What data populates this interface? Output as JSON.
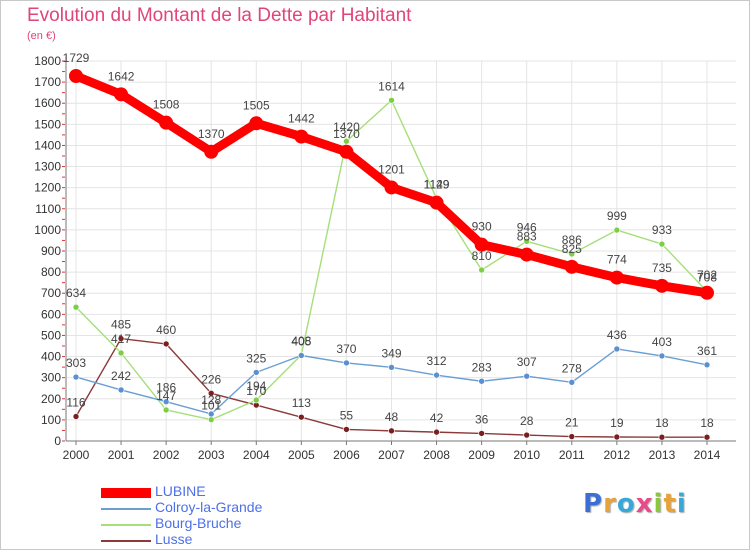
{
  "title": "Evolution du Montant de la Dette par Habitant",
  "unit": "(en €)",
  "brand": {
    "letters": [
      {
        "char": "P",
        "color": "#3b6fd6"
      },
      {
        "char": "r",
        "color": "#e8a23a"
      },
      {
        "char": "o",
        "color": "#3aa8d6"
      },
      {
        "char": "x",
        "color": "#e84a8a"
      },
      {
        "char": "i",
        "color": "#8cc63f"
      },
      {
        "char": "t",
        "color": "#e8a23a"
      },
      {
        "char": "i",
        "color": "#3aa8d6"
      }
    ]
  },
  "chart_data": {
    "type": "line",
    "title": "Evolution du Montant de la Dette par Habitant",
    "ylabel": "(en €)",
    "xlabel": "",
    "x": [
      "2000",
      "2001",
      "2002",
      "2003",
      "2004",
      "2005",
      "2006",
      "2007",
      "2008",
      "2009",
      "2010",
      "2011",
      "2012",
      "2013",
      "2014"
    ],
    "ylim": [
      0,
      1800
    ],
    "yticks": [
      0,
      100,
      200,
      300,
      400,
      500,
      600,
      700,
      800,
      900,
      1000,
      1100,
      1200,
      1300,
      1400,
      1500,
      1600,
      1700,
      1800
    ],
    "grid": true,
    "legend_position": "bottom-left",
    "series": [
      {
        "name": "LUBINE",
        "color": "#ff0000",
        "marker_fill": "#ff0000",
        "values": [
          1729,
          1642,
          1508,
          1370,
          1505,
          1442,
          1370,
          1201,
          1129,
          930,
          883,
          825,
          774,
          735,
          702
        ]
      },
      {
        "name": "Colroy-la-Grande",
        "color": "#6a9fd4",
        "marker_fill": "#5b8fd0",
        "values": [
          303,
          242,
          186,
          128,
          325,
          405,
          370,
          349,
          312,
          283,
          307,
          278,
          436,
          403,
          361
        ]
      },
      {
        "name": "Bourg-Bruche",
        "color": "#a6df7a",
        "marker_fill": "#7ccf45",
        "values": [
          634,
          417,
          147,
          101,
          194,
          408,
          1420,
          1614,
          1149,
          810,
          946,
          886,
          999,
          933,
          708
        ]
      },
      {
        "name": "Lusse",
        "color": "#8b3a3a",
        "marker_fill": "#7a1f1f",
        "values": [
          116,
          485,
          460,
          226,
          170,
          113,
          55,
          48,
          42,
          36,
          28,
          21,
          19,
          18,
          18
        ]
      }
    ]
  }
}
